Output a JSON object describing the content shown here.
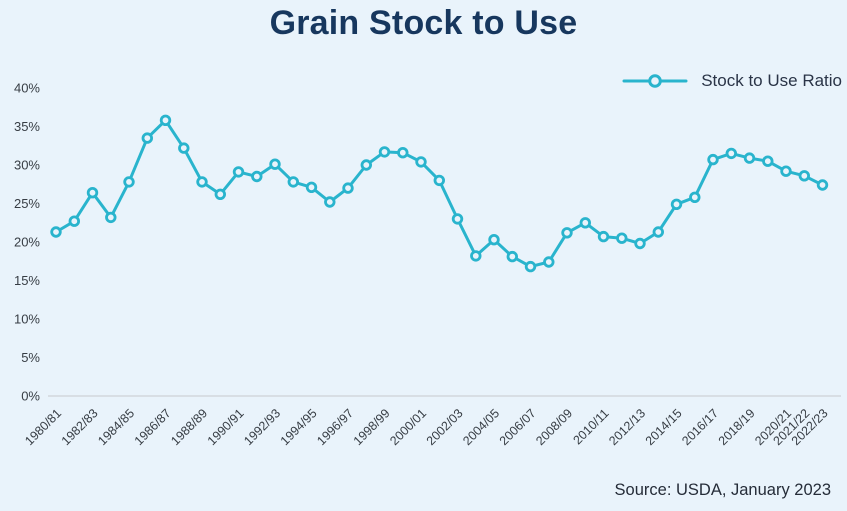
{
  "title": "Grain Stock to Use",
  "legend": {
    "label": "Stock to Use Ratio"
  },
  "source": "Source: USDA, January 2023",
  "colors": {
    "background": "#e9f3fb",
    "line": "#29b4cd",
    "marker_fill": "#e9f3fb",
    "title_text": "#17375e",
    "legend_text": "#2a3447",
    "source_text": "#252c38",
    "axis_text": "#373d44",
    "axis_line": "#d8dee4"
  },
  "chart_data": {
    "type": "line",
    "title": "Grain Stock to Use",
    "xlabel": "",
    "ylabel": "",
    "ylim": [
      0,
      40
    ],
    "y_ticks": [
      0,
      5,
      10,
      15,
      20,
      25,
      30,
      35,
      40
    ],
    "y_tick_suffix": "%",
    "grid": false,
    "legend_position": "top-right",
    "x": [
      "1980/81",
      "1981/82",
      "1982/83",
      "1983/84",
      "1984/85",
      "1985/86",
      "1986/87",
      "1987/88",
      "1988/89",
      "1989/90",
      "1990/91",
      "1991/92",
      "1992/93",
      "1993/94",
      "1994/95",
      "1995/96",
      "1996/97",
      "1997/98",
      "1998/99",
      "1999/00",
      "2000/01",
      "2001/02",
      "2002/03",
      "2003/04",
      "2004/05",
      "2005/06",
      "2006/07",
      "2007/08",
      "2008/09",
      "2009/10",
      "2010/11",
      "2011/12",
      "2012/13",
      "2013/14",
      "2014/15",
      "2015/16",
      "2016/17",
      "2017/18",
      "2018/19",
      "2019/20",
      "2020/21",
      "2021/22",
      "2022/23"
    ],
    "x_tick_indices": [
      0,
      2,
      4,
      6,
      8,
      10,
      12,
      14,
      16,
      18,
      20,
      22,
      24,
      26,
      28,
      30,
      32,
      34,
      36,
      38,
      40,
      41,
      42
    ],
    "series": [
      {
        "name": "Stock to Use Ratio",
        "values": [
          21.3,
          22.7,
          26.4,
          23.2,
          27.8,
          33.5,
          35.8,
          32.2,
          27.8,
          26.2,
          29.1,
          28.5,
          30.1,
          27.8,
          27.1,
          25.2,
          27.0,
          30.0,
          31.7,
          31.6,
          30.4,
          28.0,
          23.0,
          18.2,
          20.3,
          18.1,
          16.8,
          17.4,
          21.2,
          22.5,
          20.7,
          20.5,
          19.8,
          21.3,
          24.9,
          25.8,
          30.7,
          31.5,
          30.9,
          30.5,
          29.2,
          28.6,
          27.4
        ]
      }
    ]
  }
}
